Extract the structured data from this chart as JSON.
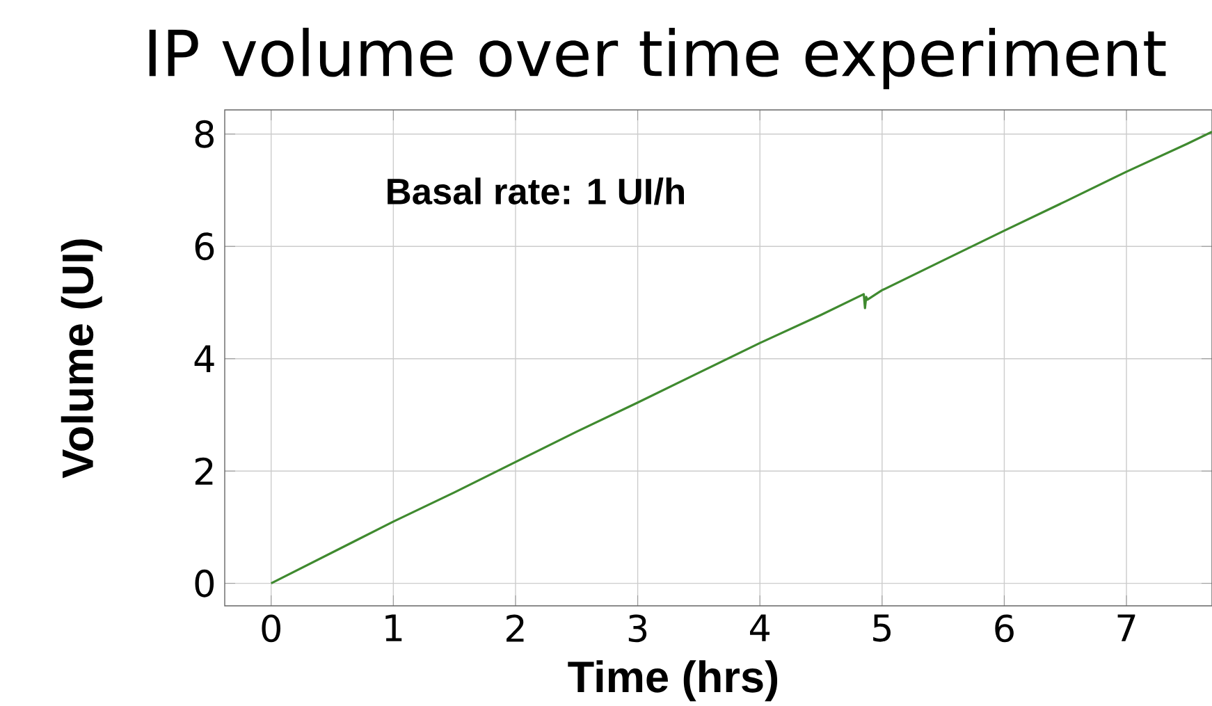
{
  "chart_data": {
    "type": "line",
    "title": "IP volume over time experiment",
    "xlabel": "Time (hrs)",
    "ylabel": "Volume  (UI)",
    "annotations": [
      "Basal rate:  1 UI/h"
    ],
    "x": [
      0,
      0.5,
      1,
      1.5,
      2,
      2.5,
      3,
      3.5,
      4,
      4.5,
      4.85,
      4.86,
      4.87,
      4.88,
      5,
      5.5,
      6,
      6.5,
      7,
      7.5,
      7.7
    ],
    "series": [
      {
        "color": "#3f8a2f",
        "values": [
          0,
          0.55,
          1.1,
          1.62,
          2.16,
          2.7,
          3.22,
          3.75,
          4.28,
          4.78,
          5.15,
          4.9,
          5.1,
          5.05,
          5.22,
          5.75,
          6.28,
          6.8,
          7.33,
          7.83,
          8.04
        ]
      }
    ],
    "xlim": [
      -0.38,
      7.7
    ],
    "ylim": [
      -0.4,
      8.43
    ],
    "xticks": [
      0,
      1,
      2,
      3,
      4,
      5,
      6,
      7
    ],
    "yticks": [
      0,
      2,
      4,
      6,
      8
    ],
    "grid": true,
    "marker": "none",
    "line_style": "solid"
  }
}
